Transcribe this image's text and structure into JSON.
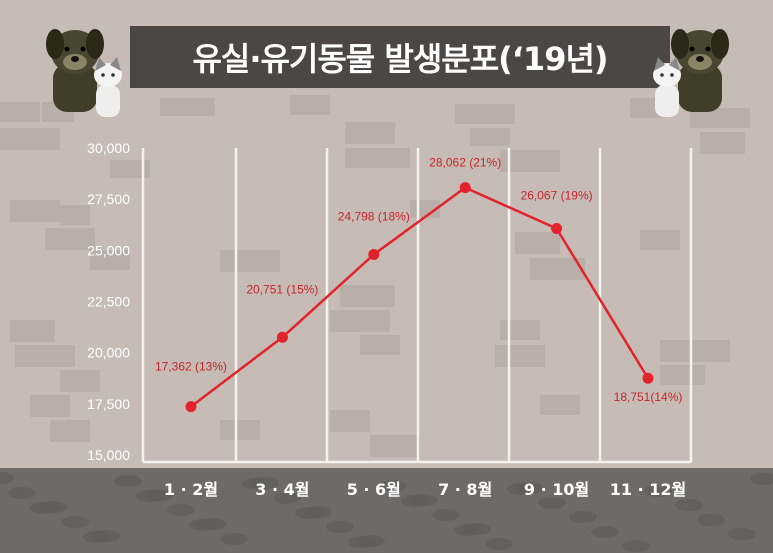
{
  "title": "유실·유기동물 발생분포(‘19년)",
  "colors": {
    "background": "#c6bcb5",
    "bricks": "#b3a9a2",
    "title_bar": "#4b4745",
    "line": "#e3232c",
    "label": "#c8252d",
    "grid": "#f4f1ee",
    "ground": "#6d6a67",
    "tick_text": "#ffffff"
  },
  "chart_data": {
    "type": "line",
    "categories": [
      "1 · 2월",
      "3 · 4월",
      "5 · 6월",
      "7 · 8월",
      "9 · 10월",
      "11 · 12월"
    ],
    "values": [
      17362,
      20751,
      24798,
      28062,
      26067,
      18751
    ],
    "data_labels": [
      "17,362 (13%)",
      "20,751 (15%)",
      "24,798 (18%)",
      "28,062 (21%)",
      "26,067 (19%)",
      "18,751(14%)"
    ],
    "yticks": [
      "30,000",
      "27,500",
      "25,000",
      "22,500",
      "20,000",
      "17,500",
      "15,000"
    ],
    "ylim": [
      15000,
      30000
    ],
    "grid": "vertical"
  },
  "decorations": {
    "left_pets": "dog-and-cat-icon",
    "right_pets": "cat-and-dog-icon"
  }
}
